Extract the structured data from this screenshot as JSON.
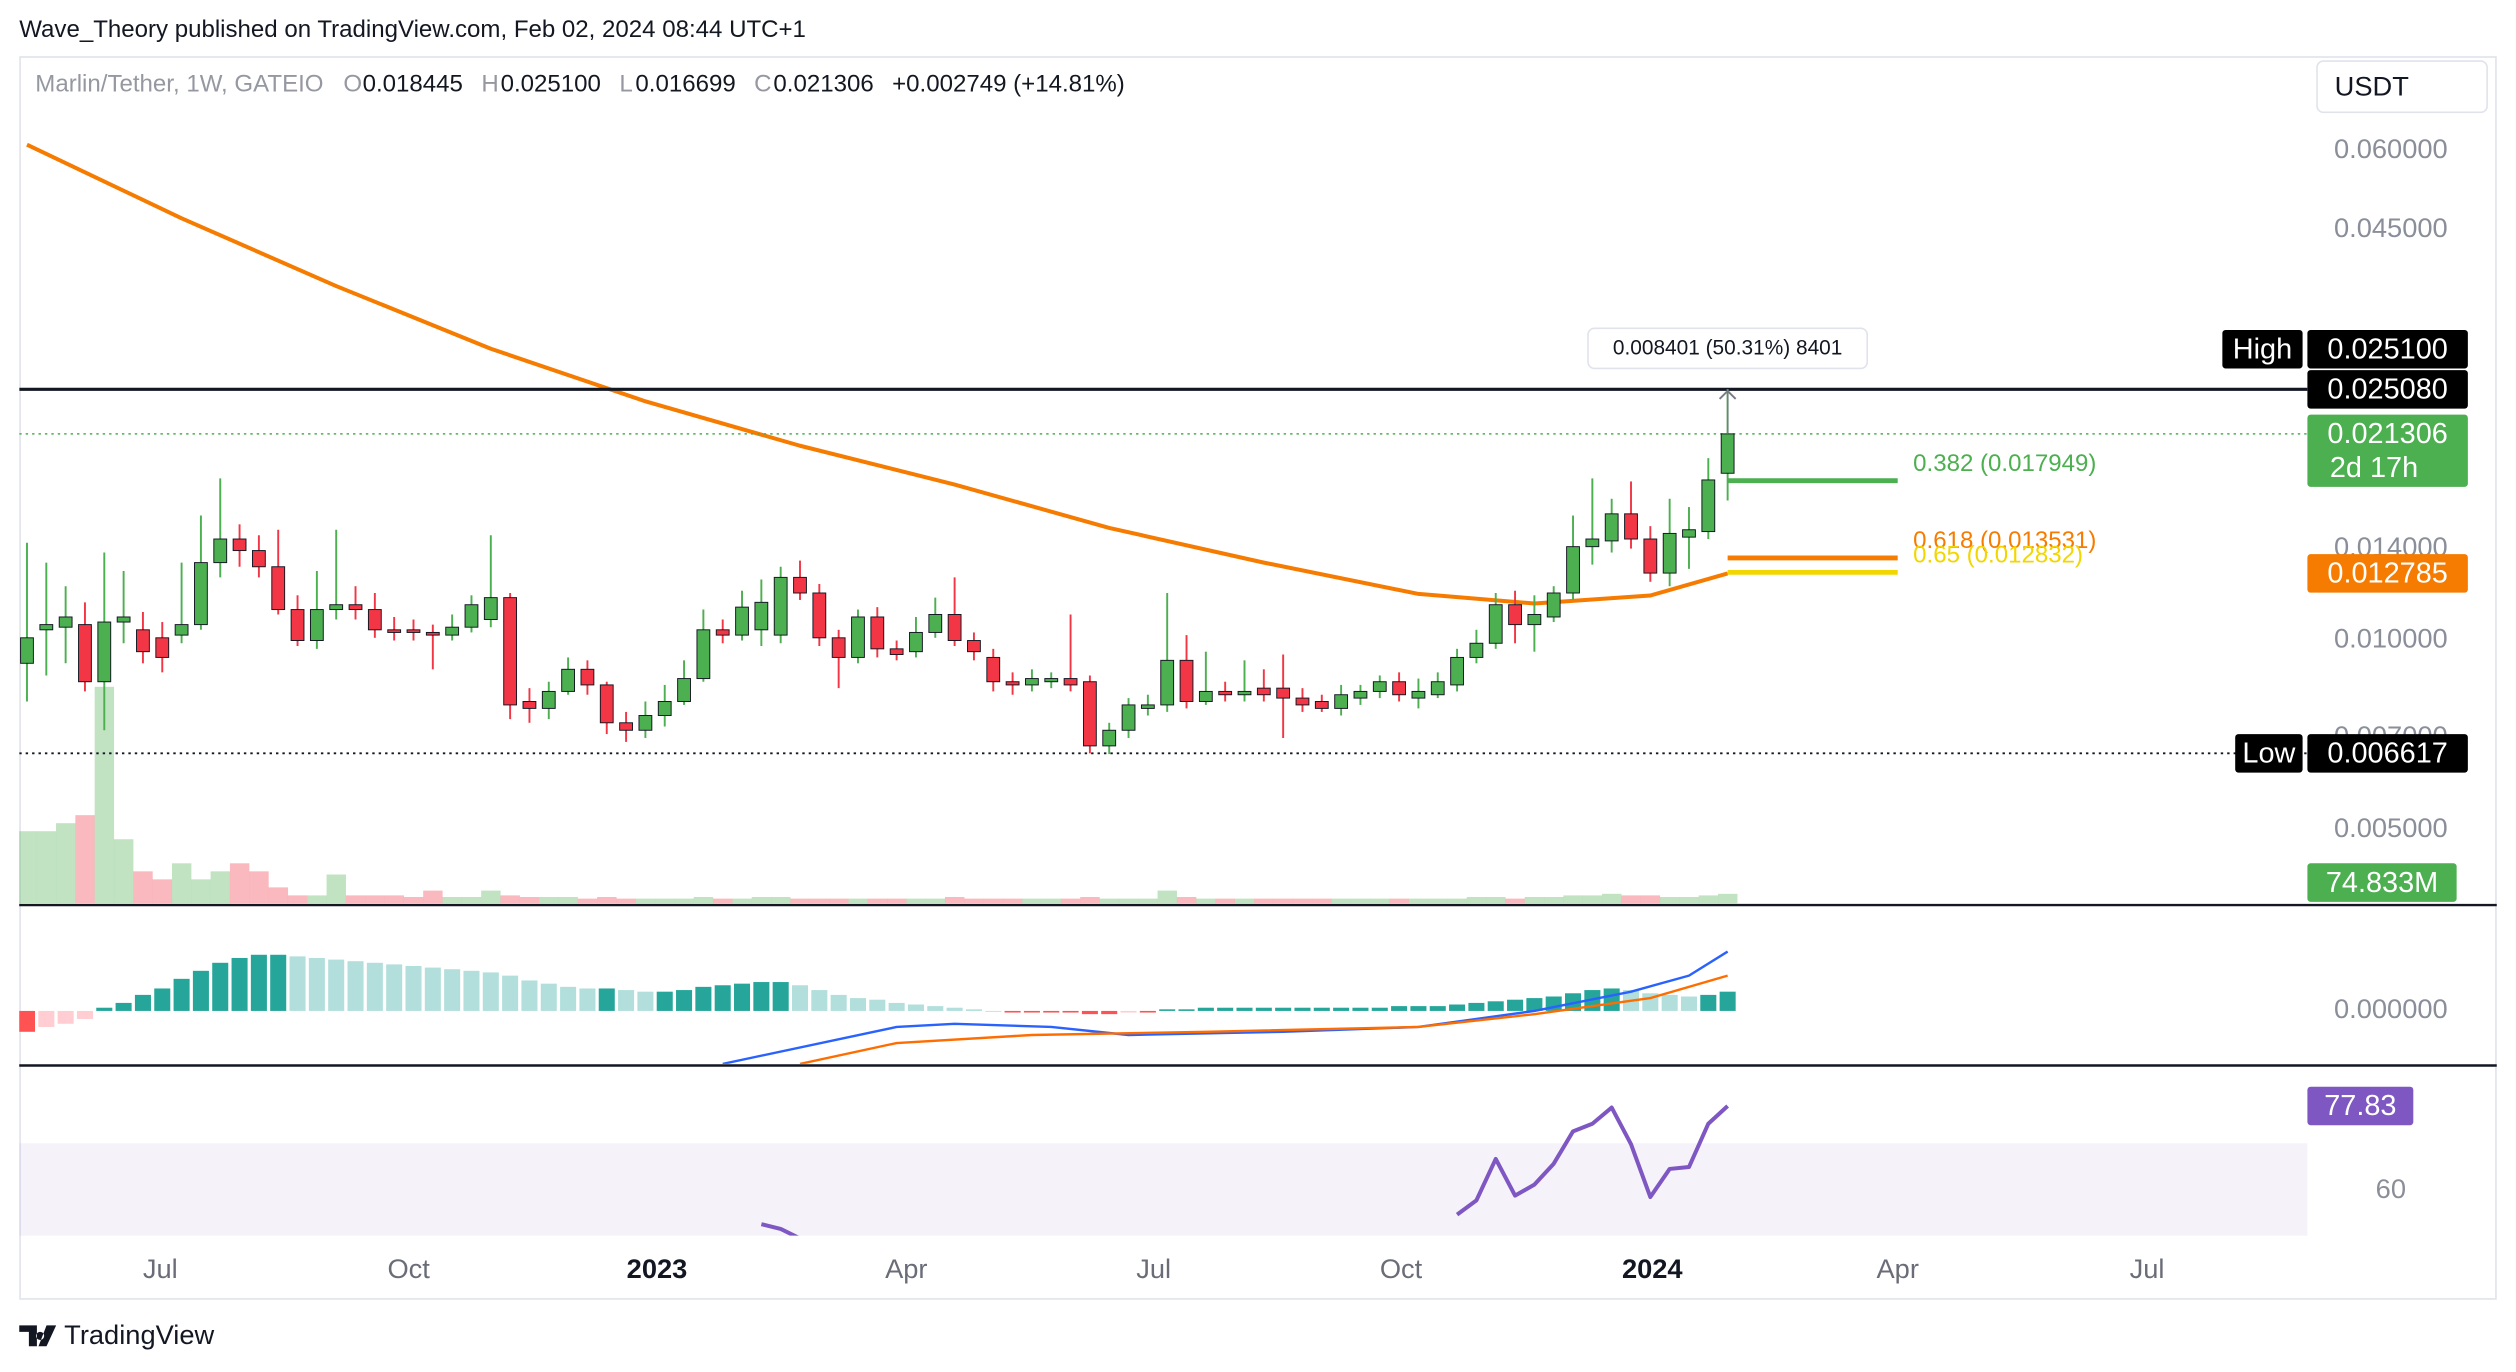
{
  "header": {
    "attribution": "Wave_Theory published on TradingView.com, Feb 02, 2024 08:44 UTC+1"
  },
  "footer": {
    "brand": "TradingView"
  },
  "chart_data": [
    {
      "type": "candlestick",
      "symbol": "Marlin/Tether, 1W, GATEIO",
      "currency": "USDT",
      "ohlc_letters": [
        "O",
        "H",
        "L",
        "C"
      ],
      "change_label": "+0.002749 (+14.81%)",
      "categories": [
        null,
        null,
        null,
        null,
        null,
        null,
        null,
        null,
        null,
        null,
        null,
        null,
        null,
        null,
        null,
        null,
        null,
        null,
        null,
        null,
        null,
        null,
        null,
        null,
        null,
        null,
        null,
        null,
        null,
        null,
        null,
        null,
        null,
        null,
        null,
        null,
        null,
        null,
        null,
        null,
        null,
        null,
        null,
        null,
        null,
        null,
        null,
        null,
        null,
        null,
        null,
        null,
        null,
        null,
        null,
        null,
        null,
        null,
        null,
        null,
        null,
        null,
        null,
        null,
        null,
        null,
        null,
        null,
        null,
        null,
        null,
        null,
        null,
        null,
        null,
        null,
        null,
        null,
        null,
        null,
        null,
        null,
        null,
        null,
        null,
        null,
        null,
        null,
        null
      ],
      "xlim": [
        -0.4,
        118
      ],
      "xticks": [
        {
          "value": 6.9,
          "label": "Jul"
        },
        {
          "value": 19.75,
          "label": "Oct"
        },
        {
          "value": 32.6,
          "label": "2023"
        },
        {
          "value": 45.5,
          "label": "Apr"
        },
        {
          "value": 58.3,
          "label": "Jul"
        },
        {
          "value": 71.1,
          "label": "Oct"
        },
        {
          "value": 84.1,
          "label": "2024"
        },
        {
          "value": 96.8,
          "label": "Apr"
        },
        {
          "value": 109.7,
          "label": "Jul"
        }
      ],
      "log_scale": true,
      "ylim": [
        0.00382,
        0.0849
      ],
      "yticks": [
        {
          "value": 0.06,
          "label": "0.060000"
        },
        {
          "value": 0.045,
          "label": "0.045000"
        },
        {
          "value": 0.014,
          "label": "0.014000"
        },
        {
          "value": 0.01,
          "label": "0.010000"
        },
        {
          "value": 0.007,
          "label": "0.007000"
        },
        {
          "value": 0.005,
          "label": "0.005000"
        }
      ],
      "up_color": "#4caf50",
      "down_color": "#f23645",
      "open": [
        0.0092,
        0.0104,
        0.0105,
        0.0106,
        0.0086,
        0.0107,
        0.0104,
        0.0101,
        0.0102,
        0.0106,
        0.0133,
        0.0145,
        0.0139,
        0.0131,
        0.0112,
        0.01,
        0.0112,
        0.0114,
        0.0112,
        0.0104,
        0.0104,
        0.0103,
        0.0102,
        0.0105,
        0.0108,
        0.0117,
        0.008,
        0.0078,
        0.0083,
        0.009,
        0.0085,
        0.0074,
        0.0072,
        0.0076,
        0.008,
        0.0087,
        0.0104,
        0.0102,
        0.0104,
        0.0102,
        0.0126,
        0.0119,
        0.0101,
        0.0094,
        0.0109,
        0.0097,
        0.0096,
        0.0103,
        0.011,
        0.01,
        0.0094,
        0.0086,
        0.0085,
        0.0086,
        0.0087,
        0.0086,
        0.0068,
        0.0072,
        0.0078,
        0.0079,
        0.0093,
        0.008,
        0.0083,
        0.0082,
        0.0084,
        0.0084,
        0.0081,
        0.008,
        0.0078,
        0.0081,
        0.0083,
        0.0086,
        0.0081,
        0.0082,
        0.0085,
        0.0094,
        0.0099,
        0.0114,
        0.0106,
        0.0109,
        0.0119,
        0.0141,
        0.0144,
        0.0159,
        0.0145,
        0.0128,
        0.0146,
        0.0149,
        0.018445
      ],
      "high": [
        0.0143,
        0.0133,
        0.0122,
        0.0115,
        0.0138,
        0.0129,
        0.0111,
        0.0107,
        0.0133,
        0.0158,
        0.0181,
        0.0153,
        0.0147,
        0.015,
        0.0118,
        0.0129,
        0.015,
        0.0122,
        0.0119,
        0.0109,
        0.0108,
        0.0106,
        0.011,
        0.0118,
        0.0147,
        0.0119,
        0.0084,
        0.0086,
        0.0094,
        0.0093,
        0.0086,
        0.0077,
        0.008,
        0.0085,
        0.0093,
        0.0112,
        0.0108,
        0.012,
        0.0125,
        0.0131,
        0.0134,
        0.0123,
        0.0104,
        0.0112,
        0.0113,
        0.01,
        0.0109,
        0.0117,
        0.0126,
        0.0103,
        0.0097,
        0.0089,
        0.009,
        0.0089,
        0.011,
        0.0088,
        0.0074,
        0.0081,
        0.0082,
        0.0119,
        0.0102,
        0.0096,
        0.0086,
        0.0093,
        0.009,
        0.0095,
        0.0084,
        0.0082,
        0.0085,
        0.0085,
        0.0088,
        0.0089,
        0.0087,
        0.0089,
        0.0097,
        0.0104,
        0.0119,
        0.012,
        0.0118,
        0.0122,
        0.0158,
        0.0181,
        0.0168,
        0.0179,
        0.0152,
        0.0168,
        0.0163,
        0.0195,
        0.0251
      ],
      "low": [
        0.008,
        0.0088,
        0.0092,
        0.0083,
        0.0072,
        0.0099,
        0.0092,
        0.0089,
        0.0099,
        0.0104,
        0.0126,
        0.0131,
        0.0126,
        0.011,
        0.0098,
        0.0097,
        0.0108,
        0.0108,
        0.0101,
        0.01,
        0.01,
        0.009,
        0.01,
        0.0103,
        0.0105,
        0.0075,
        0.0074,
        0.0075,
        0.0082,
        0.0082,
        0.0071,
        0.0069,
        0.007,
        0.0073,
        0.0079,
        0.0086,
        0.0099,
        0.01,
        0.0098,
        0.0099,
        0.0116,
        0.0098,
        0.0084,
        0.0092,
        0.0094,
        0.0093,
        0.0094,
        0.0101,
        0.0098,
        0.0093,
        0.0083,
        0.0082,
        0.0083,
        0.0084,
        0.0083,
        0.006617,
        0.0066,
        0.007,
        0.0076,
        0.0077,
        0.0078,
        0.0079,
        0.008,
        0.008,
        0.008,
        0.007,
        0.0077,
        0.0077,
        0.0076,
        0.0079,
        0.0081,
        0.008,
        0.0078,
        0.0081,
        0.0083,
        0.0092,
        0.0097,
        0.0099,
        0.0096,
        0.0107,
        0.0116,
        0.0132,
        0.0138,
        0.014,
        0.0124,
        0.0122,
        0.013,
        0.0145,
        0.016699
      ],
      "close": [
        0.0101,
        0.0106,
        0.0109,
        0.0086,
        0.0107,
        0.0109,
        0.0096,
        0.0094,
        0.0106,
        0.0133,
        0.0145,
        0.0139,
        0.0131,
        0.0112,
        0.01,
        0.0112,
        0.0114,
        0.0112,
        0.0104,
        0.0103,
        0.0103,
        0.0102,
        0.0105,
        0.0114,
        0.0117,
        0.0079,
        0.0078,
        0.0083,
        0.009,
        0.0085,
        0.0074,
        0.0072,
        0.0076,
        0.008,
        0.0087,
        0.0104,
        0.0102,
        0.0113,
        0.0115,
        0.0126,
        0.0119,
        0.0101,
        0.0094,
        0.0109,
        0.0097,
        0.0095,
        0.0103,
        0.011,
        0.01,
        0.0096,
        0.0086,
        0.0085,
        0.0087,
        0.0087,
        0.0085,
        0.0068,
        0.0072,
        0.0079,
        0.0079,
        0.0093,
        0.008,
        0.0083,
        0.0082,
        0.0083,
        0.0082,
        0.0081,
        0.0079,
        0.0078,
        0.0082,
        0.0083,
        0.0086,
        0.0082,
        0.0083,
        0.0086,
        0.0094,
        0.0099,
        0.0114,
        0.0106,
        0.011,
        0.0119,
        0.0141,
        0.0145,
        0.0159,
        0.0145,
        0.0128,
        0.0148,
        0.015,
        0.018,
        0.021306
      ],
      "volume": {
        "values": [
          562500000,
          562500000,
          625000000,
          687500000,
          1687500000,
          500000000,
          250000000,
          187500000,
          312500000,
          187500000,
          250000000,
          312500000,
          250000000,
          125000000,
          62500000,
          62500000,
          225000000,
          62500000,
          62500000,
          62500000,
          50000000,
          100000000,
          50000000,
          50000000,
          100000000,
          62500000,
          50000000,
          50000000,
          50000000,
          37500000,
          50000000,
          37500000,
          37500000,
          37500000,
          37500000,
          50000000,
          37500000,
          37500000,
          50000000,
          50000000,
          37500000,
          37500000,
          37500000,
          37500000,
          37500000,
          37500000,
          37500000,
          37500000,
          50000000,
          37500000,
          37500000,
          37500000,
          37500000,
          37500000,
          37500000,
          50000000,
          37500000,
          37500000,
          37500000,
          100000000,
          50000000,
          37500000,
          37500000,
          37500000,
          37500000,
          37500000,
          37500000,
          37500000,
          37500000,
          37500000,
          37500000,
          37500000,
          37500000,
          37500000,
          37500000,
          50000000,
          50000000,
          37500000,
          50000000,
          50000000,
          62500000,
          62500000,
          75000000,
          62500000,
          62500000,
          50000000,
          50000000,
          62500000,
          74833000
        ],
        "last_value_label": "74.833M",
        "color": "#4caf50"
      },
      "ema": {
        "color": "#f57c00",
        "x": [
          0,
          8,
          16,
          24,
          32,
          40,
          48,
          56,
          64,
          72,
          78,
          84,
          88
        ],
        "values": [
          0.0614,
          0.0469,
          0.0366,
          0.0291,
          0.024,
          0.0204,
          0.0177,
          0.0151,
          0.0133,
          0.01186,
          0.01145,
          0.01179,
          0.012785
        ]
      },
      "high_marker": {
        "label": "High",
        "value": 0.0251,
        "value_label": "0.025100"
      },
      "high_line": {
        "value": 0.02508,
        "value_label": "0.025080"
      },
      "low_marker": {
        "label": "Low",
        "value": 0.006617
      },
      "price_line": {
        "countdown": "2d 17h"
      },
      "measure": {
        "label": "0.008401 (50.31%) 8401"
      },
      "fib_levels": [
        {
          "label": "0.382 (0.017949)",
          "value": 0.017949,
          "color": "#4caf50"
        },
        {
          "label": "0.618 (0.013531)",
          "value": 0.013531,
          "color": "#f57c00"
        },
        {
          "label": "0.65 (0.012832)",
          "value": 0.012832,
          "color": "#f2d600"
        }
      ]
    },
    {
      "type": "macd",
      "ylim": [
        -0.00033,
        0.00065
      ],
      "yticks": [
        {
          "value": 0,
          "label": "0.000000"
        }
      ],
      "histogram": [
        -0.00013,
        -0.0001,
        -8e-05,
        -5e-05,
        2e-05,
        5e-05,
        0.0001,
        0.00014,
        0.0002,
        0.00025,
        0.0003,
        0.00033,
        0.00035,
        0.00035,
        0.00034,
        0.00033,
        0.00032,
        0.00031,
        0.0003,
        0.00029,
        0.00028,
        0.00027,
        0.00026,
        0.00025,
        0.00024,
        0.00022,
        0.00019,
        0.00017,
        0.00015,
        0.00014,
        0.00014,
        0.00013,
        0.00012,
        0.00012,
        0.00013,
        0.00015,
        0.00016,
        0.00017,
        0.00018,
        0.00018,
        0.00016,
        0.00013,
        0.0001,
        8e-05,
        7e-05,
        5e-05,
        4e-05,
        3e-05,
        2e-05,
        1e-05,
        0,
        -1e-05,
        -1e-05,
        -1e-05,
        -1e-05,
        -2e-05,
        -2e-05,
        -1e-05,
        -1e-05,
        1e-05,
        1e-05,
        2e-05,
        2e-05,
        2e-05,
        2e-05,
        2e-05,
        2e-05,
        2e-05,
        2e-05,
        2e-05,
        2e-05,
        3e-05,
        3e-05,
        3e-05,
        4e-05,
        5e-05,
        6e-05,
        7e-05,
        8e-05,
        9e-05,
        0.00011,
        0.00013,
        0.00014,
        0.00013,
        0.00011,
        0.0001,
        9e-05,
        0.0001,
        0.00012
      ],
      "colors": {
        "up_strong": "#26a69a",
        "up_weak": "#b2dfdb",
        "down_strong": "#ff5252",
        "down_weak": "#ffcdd2"
      },
      "series": [
        {
          "color": "#2962ff",
          "x": [
            36,
            45,
            48,
            53,
            57,
            65,
            72,
            78,
            83,
            86,
            88
          ],
          "values": [
            -0.00033,
            -0.0001,
            -8e-05,
            -0.0001,
            -0.00015,
            -0.00013,
            -0.0001,
            0,
            0.00012,
            0.00022,
            0.00037
          ]
        },
        {
          "color": "#ff6d00",
          "x": [
            40,
            45,
            52,
            61,
            72,
            78,
            84,
            88
          ],
          "values": [
            -0.00033,
            -0.0002,
            -0.00015,
            -0.00013,
            -0.0001,
            -2e-05,
            8e-05,
            0.00022
          ]
        }
      ]
    },
    {
      "type": "rsi",
      "ylim": [
        50.6,
        86
      ],
      "yticks": [
        60
      ],
      "band": [
        30,
        70
      ],
      "color": "#7e57c2",
      "x": [
        38,
        39,
        40,
        73,
        74,
        75,
        76,
        77,
        78,
        79,
        80,
        81,
        82,
        83,
        84,
        85,
        86,
        87,
        88
      ],
      "values": [
        53.0,
        52.0,
        50.0,
        null,
        55.0,
        58.0,
        66.7,
        59.0,
        61.3,
        65.7,
        72.5,
        74.1,
        77.5,
        69.8,
        58.7,
        64.6,
        65.0,
        74.1,
        77.83
      ]
    }
  ]
}
